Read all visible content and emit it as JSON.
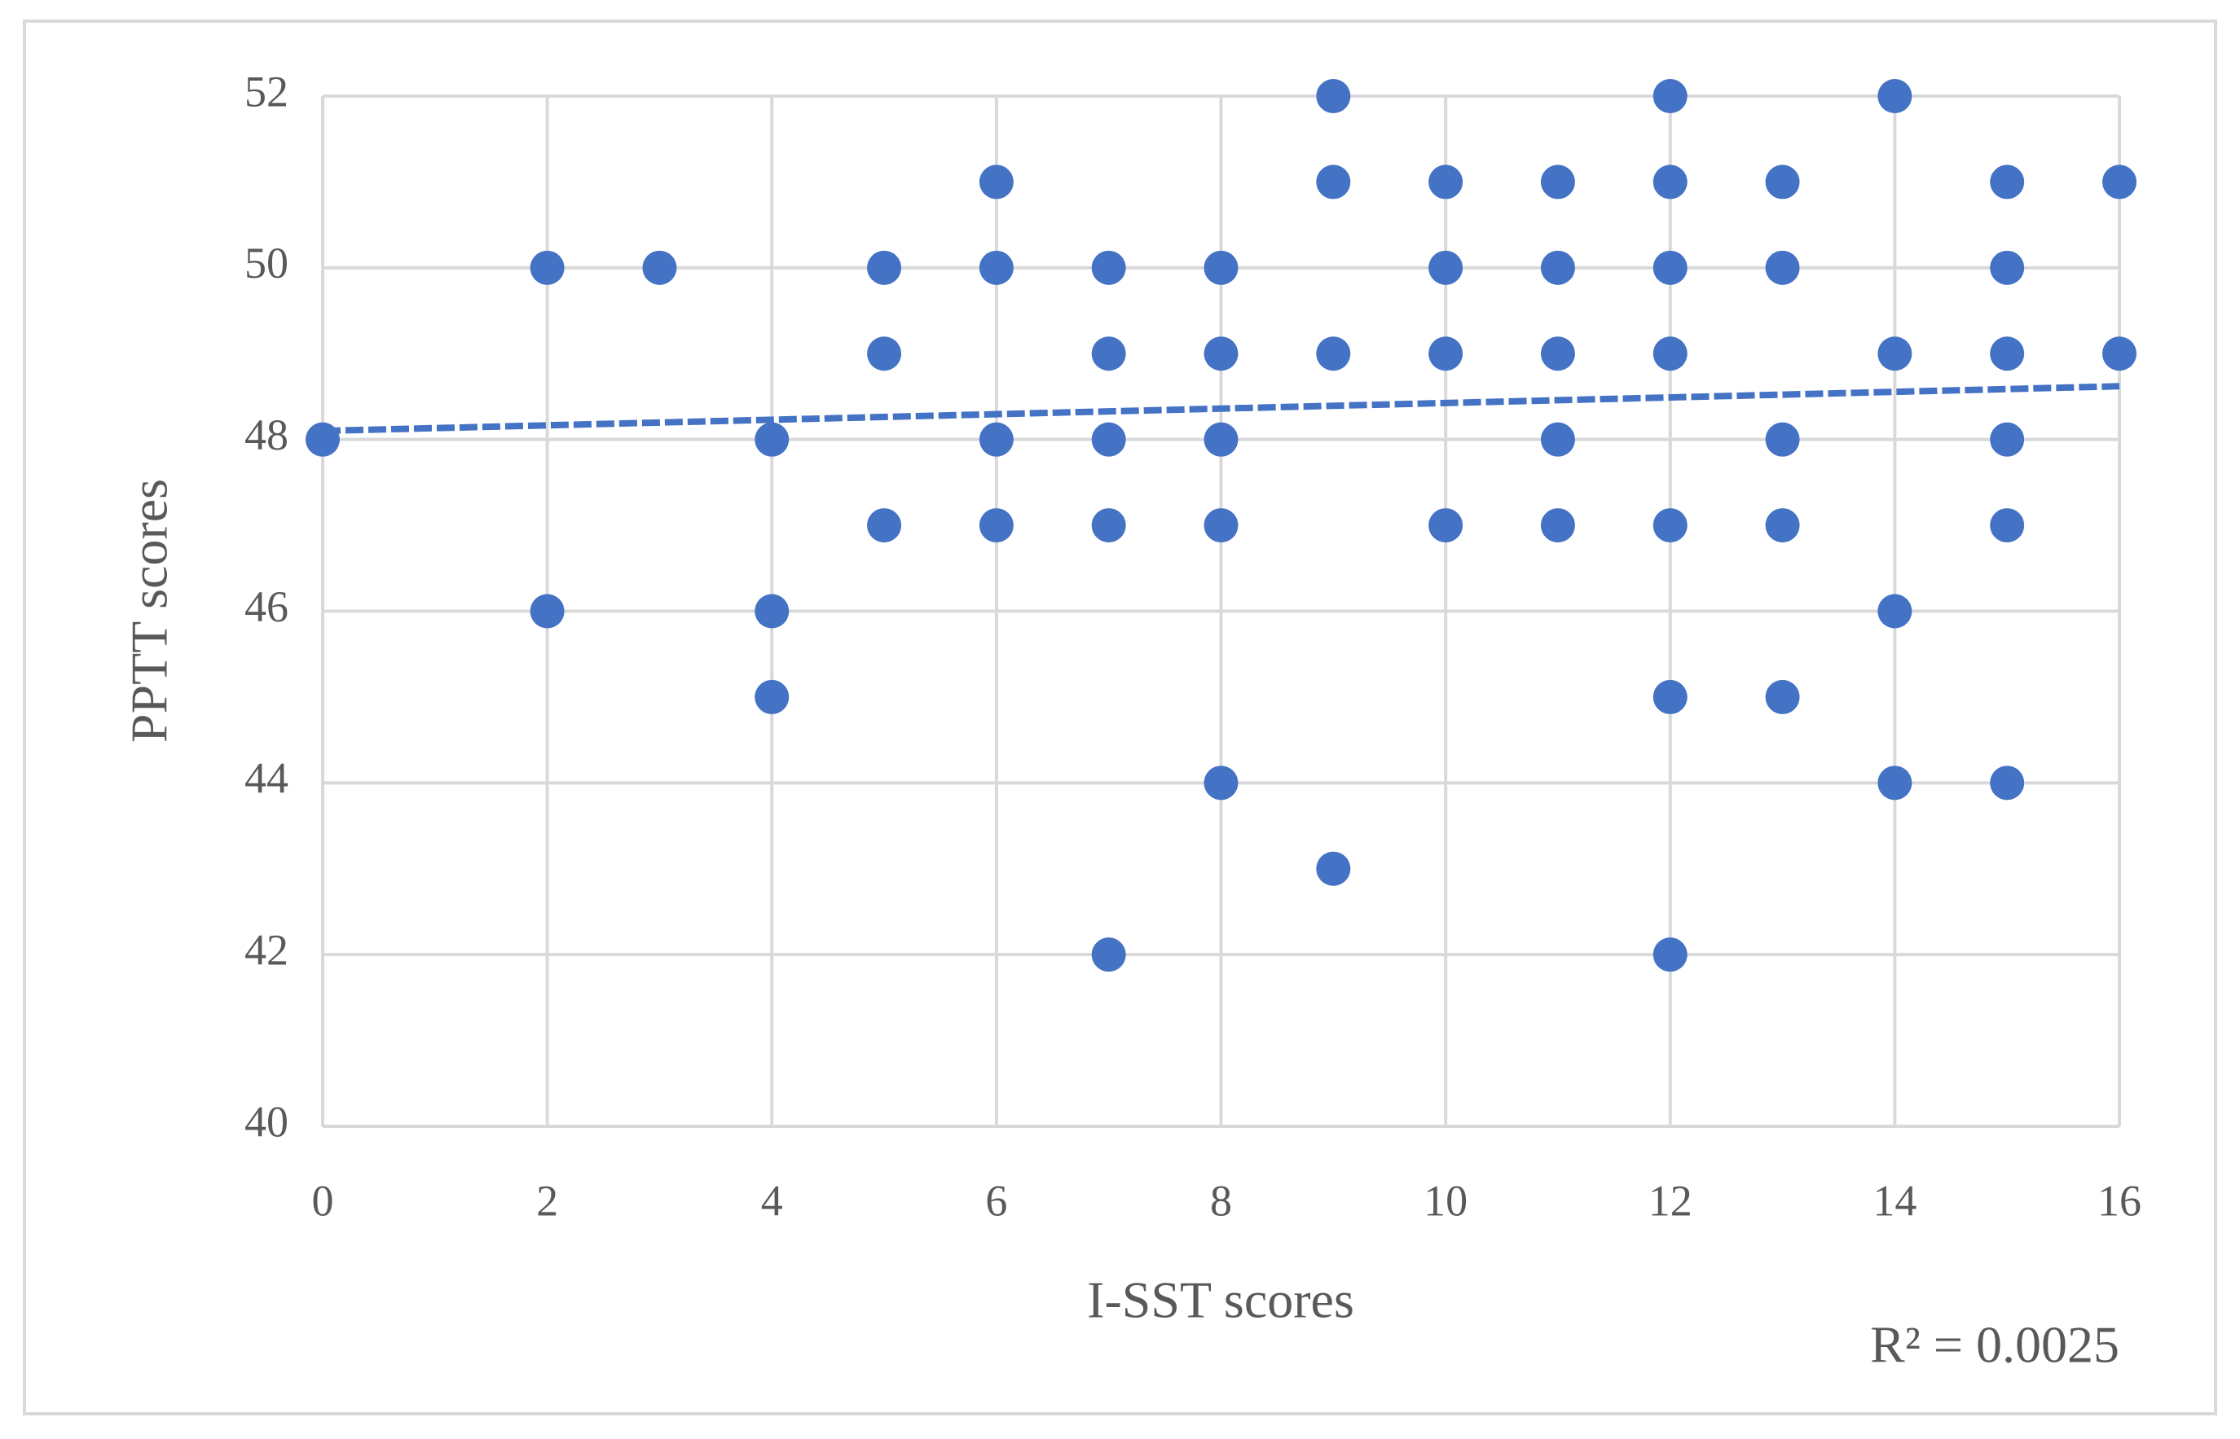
{
  "chart_data": {
    "type": "scatter",
    "xlabel": "I-SST scores",
    "ylabel": "PPTT scores",
    "annotation": "R² = 0.0025",
    "series": [
      {
        "color": "#4472c4",
        "x": [
          0,
          2,
          2,
          3,
          4,
          4,
          4,
          5,
          5,
          5,
          6,
          6,
          6,
          6,
          7,
          7,
          7,
          7,
          7,
          8,
          8,
          8,
          8,
          8,
          9,
          9,
          9,
          9,
          10,
          10,
          10,
          10,
          11,
          11,
          11,
          11,
          11,
          12,
          12,
          12,
          12,
          12,
          12,
          12,
          13,
          13,
          13,
          13,
          13,
          14,
          14,
          14,
          14,
          15,
          15,
          15,
          15,
          15,
          15,
          16,
          16
        ],
        "values": [
          48,
          50,
          46,
          50,
          48,
          46,
          45,
          50,
          49,
          47,
          51,
          50,
          48,
          47,
          50,
          49,
          48,
          47,
          42,
          50,
          49,
          48,
          47,
          44,
          52,
          51,
          49,
          43,
          51,
          50,
          49,
          47,
          51,
          50,
          49,
          48,
          47,
          52,
          51,
          50,
          49,
          47,
          45,
          42,
          51,
          50,
          48,
          47,
          45,
          52,
          49,
          46,
          44,
          51,
          50,
          49,
          48,
          47,
          44,
          51,
          49
        ]
      }
    ],
    "trendline": {
      "x": [
        0,
        16
      ],
      "values": [
        48.1,
        48.62
      ],
      "color": "#4472c4"
    },
    "xlim": [
      0,
      16
    ],
    "xticks": [
      0,
      2,
      4,
      6,
      8,
      10,
      12,
      14,
      16
    ],
    "ylim": [
      40,
      52
    ],
    "yticks": [
      40,
      42,
      44,
      46,
      48,
      50,
      52
    ],
    "grid": true
  }
}
